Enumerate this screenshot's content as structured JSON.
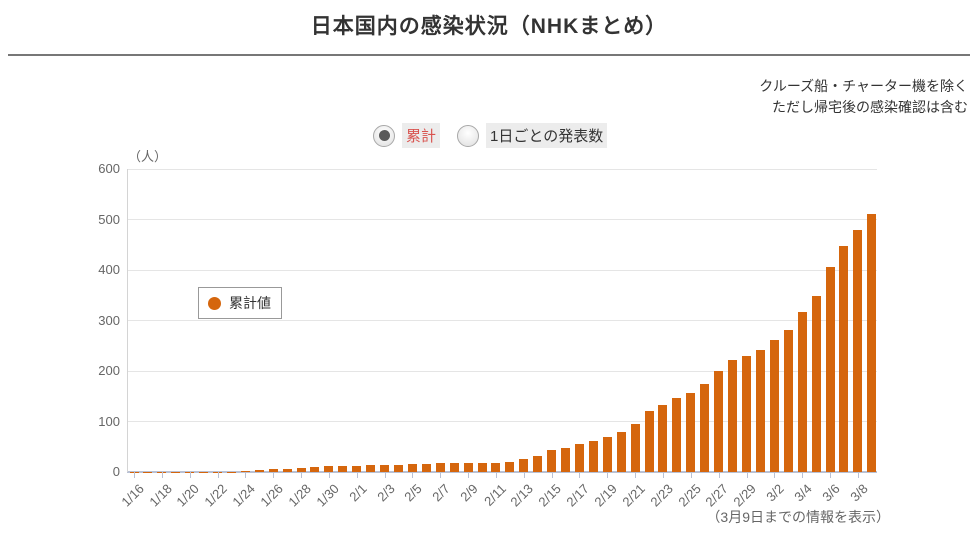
{
  "header": {
    "title": "日本国内の感染状況（NHKまとめ）"
  },
  "note": {
    "line1": "クルーズ船・チャーター機を除く",
    "line2": "ただし帰宅後の感染確認は含む"
  },
  "controls": {
    "radio_cumulative_label": "累計",
    "radio_daily_label": "1日ごとの発表数",
    "selected": "累計"
  },
  "legend": {
    "label": "累計値"
  },
  "footer": {
    "caption": "（3月9日までの情報を表示）"
  },
  "colors": {
    "bar": "#d5660d",
    "selected_radio_text": "#d9534f",
    "gridline": "#e5e5e5",
    "axis": "#b9c1d4"
  },
  "chart_data": {
    "type": "bar",
    "title": "日本国内の感染状況（NHKまとめ）",
    "unit_label": "（人）",
    "legend": "累計値",
    "xlabel": "",
    "ylabel": "（人）",
    "ylim": [
      0,
      600
    ],
    "yticks": [
      0,
      100,
      200,
      300,
      400,
      500,
      600
    ],
    "grid": "horizontal-only",
    "legend_position": "inside-left",
    "categories": [
      "1/16",
      "1/17",
      "1/18",
      "1/19",
      "1/20",
      "1/21",
      "1/22",
      "1/23",
      "1/24",
      "1/25",
      "1/26",
      "1/27",
      "1/28",
      "1/29",
      "1/30",
      "1/31",
      "2/1",
      "2/2",
      "2/3",
      "2/4",
      "2/5",
      "2/6",
      "2/7",
      "2/8",
      "2/9",
      "2/10",
      "2/11",
      "2/12",
      "2/13",
      "2/14",
      "2/15",
      "2/16",
      "2/17",
      "2/18",
      "2/19",
      "2/20",
      "2/21",
      "2/22",
      "2/23",
      "2/24",
      "2/25",
      "2/26",
      "2/27",
      "2/28",
      "2/29",
      "3/1",
      "3/2",
      "3/3",
      "3/4",
      "3/5",
      "3/6",
      "3/7",
      "3/8",
      "3/9"
    ],
    "values": [
      1,
      1,
      1,
      1,
      1,
      1,
      1,
      1,
      2,
      4,
      5,
      5,
      8,
      9,
      12,
      12,
      12,
      13,
      13,
      14,
      16,
      16,
      17,
      17,
      17,
      18,
      18,
      19,
      26,
      31,
      43,
      48,
      55,
      62,
      70,
      79,
      96,
      121,
      133,
      146,
      156,
      174,
      201,
      221,
      230,
      242,
      261,
      281,
      317,
      349,
      405,
      447,
      480,
      510
    ],
    "x_tick_labels": [
      "1/16",
      "1/18",
      "1/20",
      "1/22",
      "1/24",
      "1/26",
      "1/28",
      "1/30",
      "2/1",
      "2/3",
      "2/5",
      "2/7",
      "2/9",
      "2/11",
      "2/13",
      "2/15",
      "2/17",
      "2/19",
      "2/21",
      "2/23",
      "2/25",
      "2/27",
      "2/29",
      "3/2",
      "3/4",
      "3/6",
      "3/8"
    ]
  }
}
